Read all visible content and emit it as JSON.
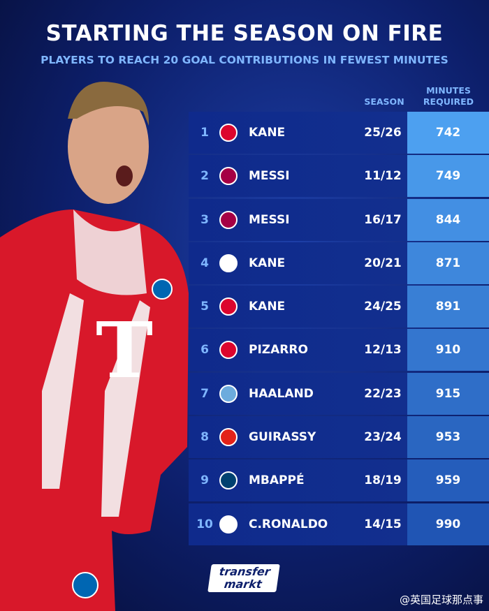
{
  "header": {
    "title": "STARTING THE SEASON ON FIRE",
    "subtitle": "PLAYERS TO REACH 20 GOAL CONTRIBUTIONS IN FEWEST MINUTES"
  },
  "table": {
    "columns": [
      "SEASON",
      "MINUTES REQUIRED"
    ],
    "rows": [
      {
        "rank": 1,
        "player": "KANE",
        "season": "25/26",
        "minutes": 742
      },
      {
        "rank": 2,
        "player": "MESSI",
        "season": "11/12",
        "minutes": 749
      },
      {
        "rank": 3,
        "player": "MESSI",
        "season": "16/17",
        "minutes": 844
      },
      {
        "rank": 4,
        "player": "KANE",
        "season": "20/21",
        "minutes": 871
      },
      {
        "rank": 5,
        "player": "KANE",
        "season": "24/25",
        "minutes": 891
      },
      {
        "rank": 6,
        "player": "PIZARRO",
        "season": "12/13",
        "minutes": 910
      },
      {
        "rank": 7,
        "player": "HAALAND",
        "season": "22/23",
        "minutes": 915
      },
      {
        "rank": 8,
        "player": "GUIRASSY",
        "season": "23/24",
        "minutes": 953
      },
      {
        "rank": 9,
        "player": "MBAPPÉ",
        "season": "18/19",
        "minutes": 959
      },
      {
        "rank": 10,
        "player": "C.RONALDO",
        "season": "14/15",
        "minutes": 990
      }
    ]
  },
  "footer": {
    "logo_top": "transfer",
    "logo_bottom": "markt",
    "watermark": "@英国足球那点事"
  }
}
